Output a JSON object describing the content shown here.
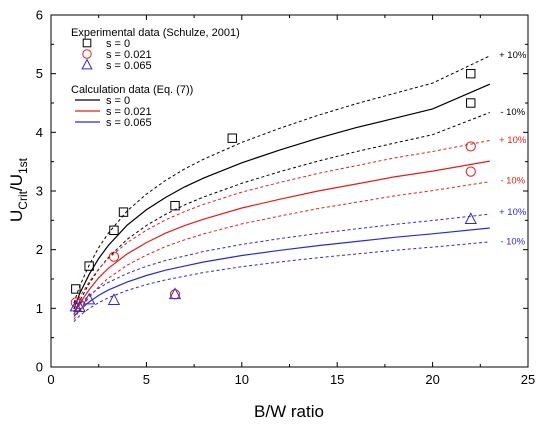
{
  "chart_data": {
    "type": "scatter",
    "xlabel": "B/W ratio",
    "ylabel_main": "U",
    "ylabel_sub1": "Crit",
    "ylabel_mid": "/U",
    "ylabel_sub2": "1st",
    "xlim": [
      0,
      25
    ],
    "ylim": [
      0,
      6
    ],
    "x_ticks": [
      0,
      5,
      10,
      15,
      20,
      25
    ],
    "y_ticks": [
      0,
      1,
      2,
      3,
      4,
      5,
      6
    ],
    "grid": false,
    "legend_position": "top-left",
    "legend": {
      "experimental_heading": "Experimental data (Schulze, 2001)",
      "calculation_heading": "Calculation data (Eq. (7))",
      "entries": [
        {
          "label": "s = 0",
          "kind": "marker",
          "marker": "square",
          "color": "#000000"
        },
        {
          "label": "s = 0.021",
          "kind": "marker",
          "marker": "circle",
          "color": "#e0201b"
        },
        {
          "label": "s = 0.065",
          "kind": "marker",
          "marker": "triangle",
          "color": "#2b2bd4"
        },
        {
          "label": "s = 0",
          "kind": "line",
          "color": "#000000"
        },
        {
          "label": "s = 0.021",
          "kind": "line",
          "color": "#e0201b"
        },
        {
          "label": "s = 0.065",
          "kind": "line",
          "color": "#2b2bd4"
        }
      ]
    },
    "experimental_series": [
      {
        "label": "s = 0",
        "marker": "square",
        "color": "#000000",
        "points": [
          [
            1.3,
            1.33
          ],
          [
            2.0,
            1.72
          ],
          [
            3.3,
            2.33
          ],
          [
            3.8,
            2.64
          ],
          [
            6.5,
            2.75
          ],
          [
            9.5,
            3.9
          ],
          [
            22.0,
            5.0
          ],
          [
            22.0,
            4.5
          ]
        ]
      },
      {
        "label": "s = 0.021",
        "marker": "circle",
        "color": "#e0201b",
        "points": [
          [
            1.3,
            1.1
          ],
          [
            1.5,
            1.07
          ],
          [
            3.3,
            1.88
          ],
          [
            6.5,
            1.24
          ],
          [
            22.0,
            3.76
          ],
          [
            22.0,
            3.33
          ]
        ]
      },
      {
        "label": "s = 0.065",
        "marker": "triangle",
        "color": "#2b2bd4",
        "points": [
          [
            1.3,
            1.03
          ],
          [
            1.5,
            1.02
          ],
          [
            2.0,
            1.15
          ],
          [
            3.3,
            1.14
          ],
          [
            6.5,
            1.24
          ],
          [
            22.0,
            2.52
          ]
        ]
      }
    ],
    "calculation_series": [
      {
        "label": "s = 0",
        "color": "#000000",
        "x": [
          1.2,
          1.5,
          2,
          2.5,
          3,
          4,
          5,
          6,
          7,
          8,
          10,
          12,
          14,
          16,
          18,
          20,
          23
        ],
        "y": [
          0.99,
          1.25,
          1.58,
          1.85,
          2.07,
          2.42,
          2.68,
          2.89,
          3.07,
          3.22,
          3.48,
          3.7,
          3.9,
          4.08,
          4.24,
          4.4,
          4.82
        ]
      },
      {
        "label": "s = 0.021",
        "color": "#e0201b",
        "x": [
          1.2,
          1.5,
          2,
          2.5,
          3,
          4,
          5,
          6,
          7,
          8,
          10,
          12,
          14,
          16,
          18,
          20,
          23
        ],
        "y": [
          0.9,
          1.08,
          1.32,
          1.52,
          1.68,
          1.93,
          2.12,
          2.28,
          2.41,
          2.52,
          2.71,
          2.86,
          3.0,
          3.12,
          3.24,
          3.34,
          3.51
        ]
      },
      {
        "label": "s = 0.065",
        "color": "#2b2bd4",
        "x": [
          1.2,
          1.5,
          2,
          2.5,
          3,
          4,
          5,
          6,
          7,
          8,
          10,
          12,
          14,
          16,
          18,
          20,
          23
        ],
        "y": [
          0.86,
          0.97,
          1.11,
          1.22,
          1.31,
          1.45,
          1.56,
          1.65,
          1.72,
          1.79,
          1.9,
          1.99,
          2.07,
          2.14,
          2.21,
          2.27,
          2.37
        ]
      }
    ],
    "band_fraction": 0.1,
    "band_labels": [
      {
        "text": "+ 10%",
        "color": "#000000",
        "at": [
          24.2,
          5.32
        ]
      },
      {
        "text": "- 10%",
        "color": "#000000",
        "at": [
          24.2,
          4.35
        ]
      },
      {
        "text": "+ 10%",
        "color": "#e0201b",
        "at": [
          24.2,
          3.87
        ]
      },
      {
        "text": "- 10%",
        "color": "#e0201b",
        "at": [
          24.2,
          3.18
        ]
      },
      {
        "text": "+ 10%",
        "color": "#2b2bd4",
        "at": [
          24.2,
          2.64
        ]
      },
      {
        "text": "- 10%",
        "color": "#2b2bd4",
        "at": [
          24.2,
          2.14
        ]
      }
    ]
  }
}
